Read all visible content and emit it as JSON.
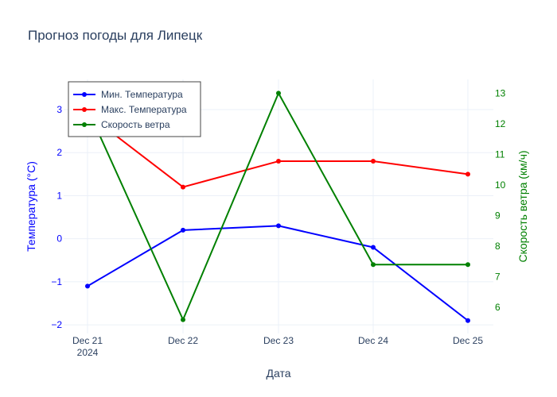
{
  "colors": {
    "min_temp": "#0000ff",
    "max_temp": "#ff0000",
    "wind": "#008000",
    "grid": "#ebf0f8",
    "text": "#2a3f5f"
  },
  "chart_data": {
    "type": "line",
    "title": "Прогноз погоды для Липецк",
    "xlabel": "Дата",
    "ylabel": "Температура (°C)",
    "y2label": "Скорость ветра (км/ч)",
    "categories": [
      "Dec 21",
      "Dec 22",
      "Dec 23",
      "Dec 24",
      "Dec 25"
    ],
    "x_year_label": "2024",
    "ylim": [
      -2.2,
      3.7
    ],
    "y2lim": [
      5.15,
      13.45
    ],
    "y_ticks": [
      -2,
      -1,
      0,
      1,
      2,
      3
    ],
    "y_tick_labels": [
      "−2",
      "−1",
      "0",
      "1",
      "2",
      "3"
    ],
    "y2_ticks": [
      6,
      7,
      8,
      9,
      10,
      11,
      12,
      13
    ],
    "y2_tick_labels": [
      "6",
      "7",
      "8",
      "9",
      "10",
      "11",
      "12",
      "13"
    ],
    "grid": true,
    "legend_placement": "top-left",
    "series": [
      {
        "name": "Мин. Температура",
        "axis": "y",
        "color_key": "min_temp",
        "values": [
          -1.1,
          0.2,
          0.3,
          -0.2,
          -1.9
        ]
      },
      {
        "name": "Макс. Температура",
        "axis": "y",
        "color_key": "max_temp",
        "values": [
          2.9,
          1.2,
          1.8,
          1.8,
          1.5
        ]
      },
      {
        "name": "Скорость ветра",
        "axis": "y2",
        "color_key": "wind",
        "values": [
          12.5,
          5.6,
          13.0,
          7.4,
          7.4
        ]
      }
    ]
  }
}
